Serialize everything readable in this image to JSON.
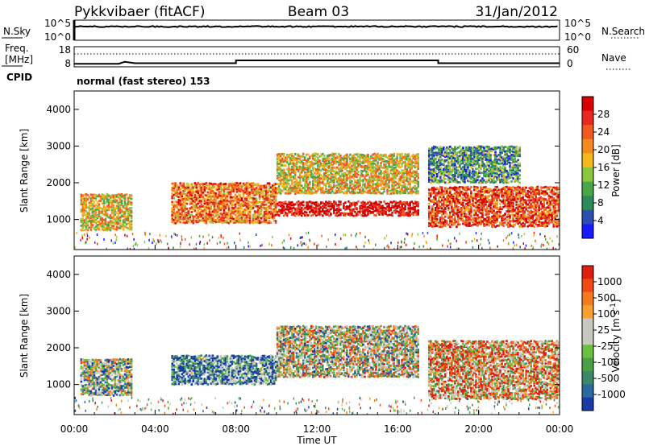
{
  "header": {
    "station": "Pykkvibaer (fitACF)",
    "beam": "Beam 03",
    "date": "31/Jan/2012"
  },
  "strip_noise": {
    "left_label": "N.Sky",
    "left_ticks": [
      "10^5",
      "10^0"
    ],
    "right_ticks": [
      "10^5",
      "10^0"
    ],
    "right_label": "N.Search"
  },
  "strip_freq": {
    "left_label_line1": "Freq.",
    "left_label_line2": "[MHz]",
    "left_ticks": [
      "18",
      "8"
    ],
    "right_ticks": [
      "60",
      "0"
    ],
    "right_label": "Nave",
    "cpid_label": "CPID",
    "cpid_text": "normal (fast stereo) 153"
  },
  "power_panel": {
    "ylabel": "Slant Range [km]",
    "yticks": [
      "4000",
      "3000",
      "2000",
      "1000"
    ],
    "colorbar_label": "Power [dB]",
    "colorbar_ticks": [
      "28",
      "24",
      "20",
      "16",
      "12",
      "8",
      "4"
    ],
    "colors": [
      "#1a1aff",
      "#2a4fb0",
      "#2e8a5a",
      "#4aa648",
      "#8cc63e",
      "#f4b81c",
      "#f58a1e",
      "#f05a1e",
      "#e8281e",
      "#d80000"
    ]
  },
  "velocity_panel": {
    "ylabel": "Slant Range [km]",
    "yticks": [
      "4000",
      "3000",
      "2000",
      "1000"
    ],
    "colorbar_label": "Velocity [m s",
    "colorbar_label_sup": "-1",
    "colorbar_label_end": "]",
    "colorbar_ticks": [
      "1000",
      "500",
      "100",
      "25",
      "-25",
      "-100",
      "-500",
      "-1000"
    ],
    "colors": [
      "#1a3aa8",
      "#2b6aa0",
      "#3a8a6a",
      "#4aa048",
      "#6cc040",
      "#c8c8c0",
      "#c8c8c0",
      "#f5a030",
      "#f57a1e",
      "#f04a14",
      "#e01e10"
    ]
  },
  "xaxis": {
    "label": "Time UT",
    "ticks": [
      "00:00",
      "04:00",
      "08:00",
      "12:00",
      "16:00",
      "20:00",
      "00:00"
    ]
  },
  "chart_data": {
    "type": "heatmap",
    "title": "Pykkvibaer (fitACF) Beam 03 31/Jan/2012",
    "xlabel": "Time UT",
    "ylabel": "Slant Range [km]",
    "x_range_hours": [
      0,
      24
    ],
    "ylim": [
      180,
      4500
    ],
    "power_scale_db": [
      0,
      30
    ],
    "velocity_scale_ms": [
      -1000,
      1000
    ],
    "echo_regions": [
      {
        "panel": "power",
        "t_start": 0.3,
        "t_end": 2.8,
        "r_low": 700,
        "r_high": 1700,
        "level": 0.55
      },
      {
        "panel": "power",
        "t_start": 4.8,
        "t_end": 10.0,
        "r_low": 900,
        "r_high": 2000,
        "level": 0.7
      },
      {
        "panel": "power",
        "t_start": 10.0,
        "t_end": 17.0,
        "r_low": 1100,
        "r_high": 1500,
        "level": 0.95
      },
      {
        "panel": "power",
        "t_start": 10.0,
        "t_end": 17.0,
        "r_low": 1700,
        "r_high": 2800,
        "level": 0.55
      },
      {
        "panel": "power",
        "t_start": 17.5,
        "t_end": 24.0,
        "r_low": 800,
        "r_high": 1900,
        "level": 0.8
      },
      {
        "panel": "power",
        "t_start": 17.5,
        "t_end": 22.0,
        "r_low": 2000,
        "r_high": 3000,
        "level": 0.3
      },
      {
        "panel": "velocity",
        "t_start": 0.3,
        "t_end": 2.8,
        "r_low": 700,
        "r_high": 1700,
        "level": 0.4
      },
      {
        "panel": "velocity",
        "t_start": 4.8,
        "t_end": 10.0,
        "r_low": 1000,
        "r_high": 1800,
        "level": 0.2
      },
      {
        "panel": "velocity",
        "t_start": 10.0,
        "t_end": 17.0,
        "r_low": 1200,
        "r_high": 2600,
        "level": 0.5
      },
      {
        "panel": "velocity",
        "t_start": 17.5,
        "t_end": 24.0,
        "r_low": 600,
        "r_high": 2200,
        "level": 0.7
      }
    ]
  }
}
